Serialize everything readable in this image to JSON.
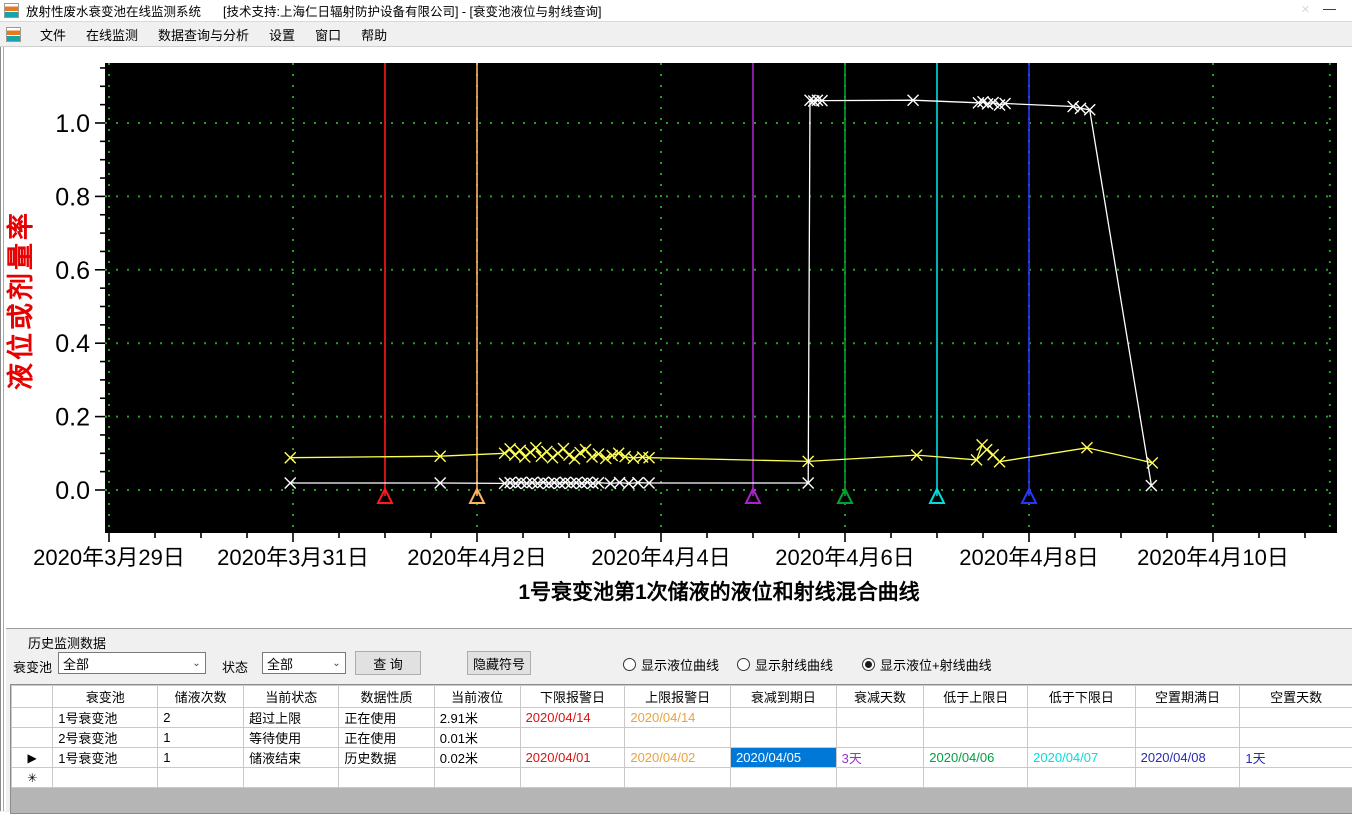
{
  "window": {
    "app_title": "放射性废水衰变池在线监测系统",
    "context_title": "[技术支持:上海仁日辐射防护设备有限公司] - [衰变池液位与射线查询]",
    "minimize_glyph": "—",
    "close_glyph": "✕"
  },
  "menu": {
    "items": [
      "文件",
      "在线监测",
      "数据查询与分析",
      "设置",
      "窗口",
      "帮助"
    ]
  },
  "chart_data": {
    "type": "line",
    "title": "1号衰变池第1次储液的液位和射线混合曲线",
    "ylabel": "液位或剂量率",
    "background": "#000000",
    "grid_color": "#2a9c2a",
    "grid": true,
    "ylabel_color": "#e60000",
    "ylim": [
      -0.117,
      1.163
    ],
    "xlim_days": [
      -0.043,
      13.35
    ],
    "x_day_zero_date": "2020年3月29日",
    "y_ticks": [
      {
        "value": 0.0,
        "label": "0.0"
      },
      {
        "value": 0.2,
        "label": "0.2"
      },
      {
        "value": 0.4,
        "label": "0.4"
      },
      {
        "value": 0.6,
        "label": "0.6"
      },
      {
        "value": 0.8,
        "label": "0.8"
      },
      {
        "value": 1.0,
        "label": "1.0"
      }
    ],
    "x_ticks": [
      {
        "day": 0,
        "label": "2020年3月29日"
      },
      {
        "day": 2,
        "label": "2020年3月31日"
      },
      {
        "day": 4,
        "label": "2020年4月2日"
      },
      {
        "day": 6,
        "label": "2020年4月4日"
      },
      {
        "day": 8,
        "label": "2020年4月6日"
      },
      {
        "day": 10,
        "label": "2020年4月8日"
      },
      {
        "day": 12,
        "label": "2020年4月10日"
      }
    ],
    "series": [
      {
        "name": "液位",
        "color": "#ffff55",
        "marker": "x",
        "points": [
          [
            1.97,
            0.088
          ],
          [
            3.6,
            0.092
          ],
          [
            4.3,
            0.1
          ],
          [
            4.36,
            0.112
          ],
          [
            4.41,
            0.095
          ],
          [
            4.47,
            0.108
          ],
          [
            4.52,
            0.09
          ],
          [
            4.58,
            0.103
          ],
          [
            4.64,
            0.115
          ],
          [
            4.7,
            0.092
          ],
          [
            4.76,
            0.105
          ],
          [
            4.82,
            0.088
          ],
          [
            4.88,
            0.1
          ],
          [
            4.94,
            0.113
          ],
          [
            5.0,
            0.095
          ],
          [
            5.06,
            0.085
          ],
          [
            5.12,
            0.102
          ],
          [
            5.18,
            0.11
          ],
          [
            5.25,
            0.09
          ],
          [
            5.32,
            0.098
          ],
          [
            5.4,
            0.086
          ],
          [
            5.47,
            0.094
          ],
          [
            5.54,
            0.1
          ],
          [
            5.61,
            0.091
          ],
          [
            5.7,
            0.087
          ],
          [
            5.8,
            0.09
          ],
          [
            5.87,
            0.088
          ],
          [
            7.6,
            0.078
          ],
          [
            8.78,
            0.095
          ],
          [
            9.43,
            0.082
          ],
          [
            9.49,
            0.123
          ],
          [
            9.54,
            0.11
          ],
          [
            9.61,
            0.096
          ],
          [
            9.68,
            0.077
          ],
          [
            10.63,
            0.115
          ],
          [
            11.34,
            0.074
          ]
        ]
      },
      {
        "name": "射线",
        "color": "#ffffff",
        "marker": "x",
        "points": [
          [
            1.97,
            0.019
          ],
          [
            3.6,
            0.019
          ],
          [
            4.3,
            0.018
          ],
          [
            4.36,
            0.02
          ],
          [
            4.42,
            0.018
          ],
          [
            4.48,
            0.021
          ],
          [
            4.54,
            0.018
          ],
          [
            4.6,
            0.02
          ],
          [
            4.66,
            0.018
          ],
          [
            4.72,
            0.021
          ],
          [
            4.78,
            0.018
          ],
          [
            4.84,
            0.02
          ],
          [
            4.9,
            0.018
          ],
          [
            4.96,
            0.021
          ],
          [
            5.02,
            0.018
          ],
          [
            5.08,
            0.02
          ],
          [
            5.14,
            0.018
          ],
          [
            5.2,
            0.021
          ],
          [
            5.26,
            0.018
          ],
          [
            5.32,
            0.02
          ],
          [
            5.45,
            0.018
          ],
          [
            5.55,
            0.02
          ],
          [
            5.65,
            0.018
          ],
          [
            5.75,
            0.02
          ],
          [
            5.87,
            0.019
          ],
          [
            7.6,
            0.019
          ],
          [
            7.62,
            1.062
          ],
          [
            7.66,
            1.06
          ],
          [
            7.7,
            1.062
          ],
          [
            7.75,
            1.061
          ],
          [
            8.74,
            1.062
          ],
          [
            9.45,
            1.055
          ],
          [
            9.5,
            1.058
          ],
          [
            9.55,
            1.052
          ],
          [
            9.61,
            1.056
          ],
          [
            9.68,
            1.049
          ],
          [
            9.74,
            1.053
          ],
          [
            10.48,
            1.045
          ],
          [
            10.56,
            1.04
          ],
          [
            10.66,
            1.036
          ],
          [
            11.33,
            0.012
          ]
        ]
      }
    ],
    "ref_lines": [
      {
        "day": 3,
        "date": "2020/04/01",
        "meaning": "下限报警日",
        "color": "#ff1a1a"
      },
      {
        "day": 4,
        "date": "2020/04/02",
        "meaning": "上限报警日",
        "color": "#ffb45e"
      },
      {
        "day": 7,
        "date": "2020/04/05",
        "meaning": "衰减到期日",
        "color": "#aa22cc"
      },
      {
        "day": 8,
        "date": "2020/04/06",
        "meaning": "低于上限日",
        "color": "#00a32e"
      },
      {
        "day": 9,
        "date": "2020/04/07",
        "meaning": "低于下限日",
        "color": "#00dde0"
      },
      {
        "day": 10,
        "date": "2020/04/08",
        "meaning": "空置期满日",
        "color": "#2636ff"
      }
    ]
  },
  "panel": {
    "title": "历史监测数据",
    "pool_filter": {
      "label": "衰变池",
      "value": "全部"
    },
    "status_filter": {
      "label": "状态",
      "value": "全部"
    },
    "query_button": "查 询",
    "hide_symbols_button": "隐藏符号",
    "radios": [
      {
        "label": "显示液位曲线",
        "checked": false
      },
      {
        "label": "显示射线曲线",
        "checked": false
      },
      {
        "label": "显示液位+射线曲线",
        "checked": true
      }
    ]
  },
  "table": {
    "headers": [
      "",
      "衰变池",
      "储液次数",
      "当前状态",
      "数据性质",
      "当前液位",
      "下限报警日",
      "上限报警日",
      "衰减到期日",
      "衰减天数",
      "低于上限日",
      "低于下限日",
      "空置期满日",
      "空置天数"
    ],
    "rows": [
      {
        "selector": "",
        "cells": [
          [
            "1号衰变池",
            ""
          ],
          [
            "2",
            ""
          ],
          [
            "超过上限",
            ""
          ],
          [
            "正在使用",
            ""
          ],
          [
            "2.91米",
            ""
          ],
          [
            "2020/04/14",
            "red"
          ],
          [
            "2020/04/14",
            "orange"
          ],
          [
            "",
            ""
          ],
          [
            "",
            ""
          ],
          [
            "",
            ""
          ],
          [
            "",
            ""
          ],
          [
            "",
            ""
          ],
          [
            "",
            ""
          ]
        ]
      },
      {
        "selector": "",
        "cells": [
          [
            "2号衰变池",
            ""
          ],
          [
            "1",
            ""
          ],
          [
            "等待使用",
            ""
          ],
          [
            "正在使用",
            ""
          ],
          [
            "0.01米",
            ""
          ],
          [
            "",
            ""
          ],
          [
            "",
            ""
          ],
          [
            "",
            ""
          ],
          [
            "",
            ""
          ],
          [
            "",
            ""
          ],
          [
            "",
            ""
          ],
          [
            "",
            ""
          ],
          [
            "",
            ""
          ]
        ]
      },
      {
        "selector": "▶",
        "cells": [
          [
            "1号衰变池",
            ""
          ],
          [
            "1",
            ""
          ],
          [
            "储液结束",
            ""
          ],
          [
            "历史数据",
            ""
          ],
          [
            "0.02米",
            ""
          ],
          [
            "2020/04/01",
            "red"
          ],
          [
            "2020/04/02",
            "orange"
          ],
          [
            "2020/04/05",
            "selected"
          ],
          [
            "3天",
            "purple"
          ],
          [
            "2020/04/06",
            "green"
          ],
          [
            "2020/04/07",
            "cyan"
          ],
          [
            "2020/04/08",
            "navy"
          ],
          [
            "1天",
            "navy"
          ]
        ]
      },
      {
        "selector": "✳",
        "cells": [
          [
            "",
            ""
          ],
          [
            "",
            ""
          ],
          [
            "",
            ""
          ],
          [
            "",
            ""
          ],
          [
            "",
            ""
          ],
          [
            "",
            ""
          ],
          [
            "",
            ""
          ],
          [
            "",
            ""
          ],
          [
            "",
            ""
          ],
          [
            "",
            ""
          ],
          [
            "",
            ""
          ],
          [
            "",
            ""
          ],
          [
            "",
            ""
          ]
        ]
      }
    ],
    "colors": {
      "red": "#dd1111",
      "orange": "#e8a33d",
      "purple": "#9933cc",
      "green": "#00a040",
      "cyan": "#00dede",
      "navy": "#2a2ab0",
      "selected_bg": "#0078d7",
      "selected_fg": "#ffffff"
    }
  }
}
